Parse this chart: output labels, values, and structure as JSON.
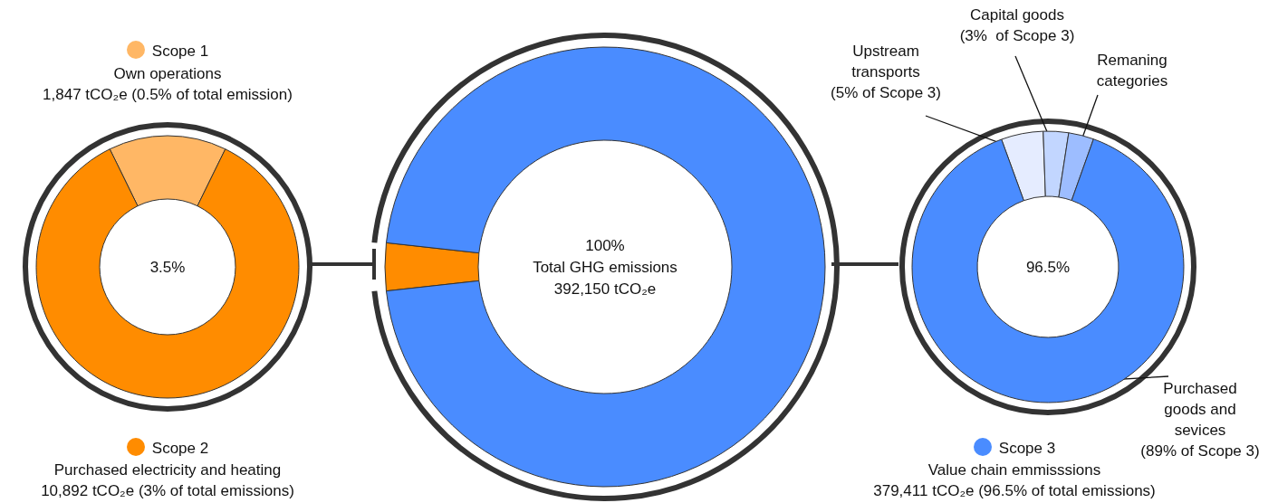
{
  "chart_data": [
    {
      "type": "donut",
      "legend": "top",
      "categories": [
        "Scope 1",
        "Scope 2"
      ],
      "values": [
        1847,
        10892
      ],
      "colors": [
        "#ffb765",
        "#ff8c00"
      ],
      "value_labels": [
        "1,847 tCO₂e (0.5% of total emission)",
        "10,892 tCO₂e (3% of total emissions)"
      ],
      "annotations": [
        "Own operations",
        "Purchased electricity and heating",
        "3.5%"
      ]
    },
    {
      "type": "donut",
      "categories": [
        null,
        null
      ],
      "values": [
        3.5,
        96.5
      ],
      "colors": [
        "#ff8c00",
        "#4a8cff"
      ],
      "annotations": [
        "100%",
        "Total GHG emissions",
        "392,150 tCO₂e"
      ]
    },
    {
      "type": "donut",
      "title": "Scope 3",
      "subtitle": "Value chain emmisssions",
      "categories": [
        "Upstream transports",
        "Capital goods",
        "Remaning categories",
        "Purchased goods and sevices"
      ],
      "values": [
        5,
        3,
        3,
        89
      ],
      "colors": [
        "#e5ecff",
        "#c2d6ff",
        "#9dbdff",
        "#4a8cff"
      ],
      "value_labels": [
        "(5% of Scope 3)",
        "(3%  of Scope 3)",
        null,
        "(89% of Scope 3)"
      ],
      "annotations": [
        "379,411 tCO₂e (96.5% of total emissions)",
        "96.5%"
      ]
    }
  ]
}
